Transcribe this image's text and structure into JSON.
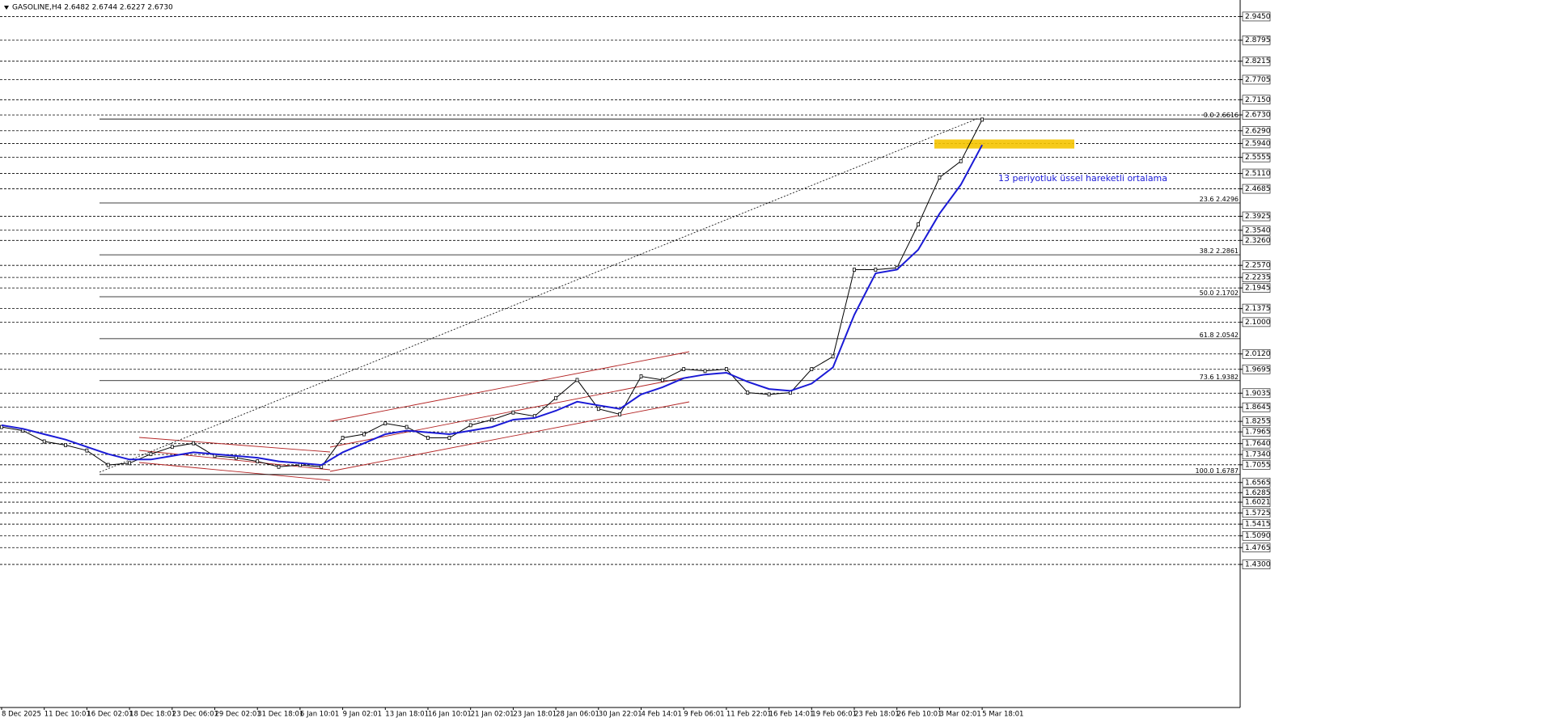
{
  "chart_data": {
    "type": "line",
    "title": "GASOLINE,H4  2.6482 2.6744 2.6227 2.6730",
    "annotation": "13 periyotluk üssel hareketli ortalama",
    "categories": [
      "8 Dec 2025",
      null,
      "11 Dec 10:01",
      null,
      "16 Dec 02:01",
      null,
      "18 Dec 18:01",
      null,
      "23 Dec 06:01",
      null,
      "29 Dec 02:01",
      null,
      "31 Dec 18:01",
      null,
      "6 Jan 10:01",
      null,
      "9 Jan 02:01",
      null,
      "13 Jan 18:01",
      null,
      "16 Jan 10:01",
      null,
      "21 Jan 02:01",
      null,
      "23 Jan 18:01",
      null,
      "28 Jan 06:01",
      null,
      "30 Jan 22:01",
      null,
      "4 Feb 14:01",
      null,
      "9 Feb 06:01",
      null,
      "11 Feb 22:01",
      null,
      "16 Feb 14:01",
      null,
      "19 Feb 06:01",
      null,
      "23 Feb 18:01",
      null,
      "26 Feb 10:01",
      null,
      "3 Mar 02:01",
      null,
      "5 Mar 18:01"
    ],
    "series": [
      {
        "name": "GASOLINE,H4",
        "color": "#000000",
        "values": [
          1.81,
          1.8,
          1.77,
          1.76,
          1.745,
          1.705,
          1.71,
          1.735,
          1.755,
          1.765,
          1.73,
          1.725,
          1.715,
          1.7,
          1.705,
          1.7,
          1.78,
          1.79,
          1.82,
          1.81,
          1.78,
          1.78,
          1.815,
          1.83,
          1.85,
          1.84,
          1.89,
          1.94,
          1.86,
          1.845,
          1.95,
          1.94,
          1.97,
          1.965,
          1.97,
          1.905,
          1.9,
          1.905,
          1.97,
          2.005,
          2.245,
          2.245,
          2.25,
          2.37,
          2.5,
          2.545,
          2.66
        ]
      },
      {
        "name": "EMA 13",
        "color": "#1a1ad6",
        "values": [
          1.815,
          1.805,
          1.79,
          1.775,
          1.755,
          1.735,
          1.72,
          1.72,
          1.73,
          1.74,
          1.735,
          1.73,
          1.725,
          1.715,
          1.71,
          1.705,
          1.74,
          1.765,
          1.79,
          1.8,
          1.795,
          1.79,
          1.8,
          1.81,
          1.83,
          1.835,
          1.855,
          1.88,
          1.87,
          1.86,
          1.9,
          1.92,
          1.945,
          1.955,
          1.96,
          1.935,
          1.915,
          1.91,
          1.93,
          1.975,
          2.12,
          2.235,
          2.245,
          2.3,
          2.4,
          2.48,
          2.59
        ]
      }
    ],
    "ylim": [
      1.0344,
      2.9907
    ],
    "yticks": [
      {
        "value": 2.945,
        "label": "2.9450"
      },
      {
        "value": 2.8795,
        "label": "2.8795"
      },
      {
        "value": 2.8215,
        "label": "2.8215"
      },
      {
        "value": 2.7705,
        "label": "2.7705"
      },
      {
        "value": 2.715,
        "label": "2.7150"
      },
      {
        "value": 2.673,
        "label": "2.6730"
      },
      {
        "value": 2.629,
        "label": "2.6290"
      },
      {
        "value": 2.594,
        "label": "2.5940"
      },
      {
        "value": 2.5555,
        "label": "2.5555"
      },
      {
        "value": 2.511,
        "label": "2.5110"
      },
      {
        "value": 2.4685,
        "label": "2.4685"
      },
      {
        "value": 2.3925,
        "label": "2.3925"
      },
      {
        "value": 2.354,
        "label": "2.3540"
      },
      {
        "value": 2.326,
        "label": "2.3260"
      },
      {
        "value": 2.257,
        "label": "2.2570"
      },
      {
        "value": 2.2235,
        "label": "2.2235"
      },
      {
        "value": 2.1945,
        "label": "2.1945"
      },
      {
        "value": 2.1375,
        "label": "2.1375"
      },
      {
        "value": 2.1,
        "label": "2.1000"
      },
      {
        "value": 2.012,
        "label": "2.0120"
      },
      {
        "value": 1.9695,
        "label": "1.9695"
      },
      {
        "value": 1.9035,
        "label": "1.9035"
      },
      {
        "value": 1.8645,
        "label": "1.8645"
      },
      {
        "value": 1.8255,
        "label": "1.8255"
      },
      {
        "value": 1.7965,
        "label": "1.7965"
      },
      {
        "value": 1.764,
        "label": "1.7640"
      },
      {
        "value": 1.734,
        "label": "1.7340"
      },
      {
        "value": 1.7055,
        "label": "1.7055"
      },
      {
        "value": 1.6565,
        "label": "1.6565"
      },
      {
        "value": 1.6285,
        "label": "1.6285"
      },
      {
        "value": 1.6021,
        "label": "1.6021"
      },
      {
        "value": 1.5725,
        "label": "1.5725"
      },
      {
        "value": 1.5415,
        "label": "1.5415"
      },
      {
        "value": 1.509,
        "label": "1.5090"
      },
      {
        "value": 1.4765,
        "label": "1.4765"
      },
      {
        "value": 1.43,
        "label": "1.4300"
      }
    ],
    "grid": true,
    "fibonacci": [
      {
        "level": "0.0",
        "value": 2.6616
      },
      {
        "level": "23.6",
        "value": 2.4296
      },
      {
        "level": "38.2",
        "value": 2.2861
      },
      {
        "level": "50.0",
        "value": 2.1702
      },
      {
        "level": "61.8",
        "value": 2.0542
      },
      {
        "level": "73.6",
        "value": 1.9382
      },
      {
        "level": "100.0",
        "value": 1.6787
      }
    ],
    "zone": {
      "color": "#f5c400",
      "range": [
        2.58,
        2.605
      ]
    }
  }
}
